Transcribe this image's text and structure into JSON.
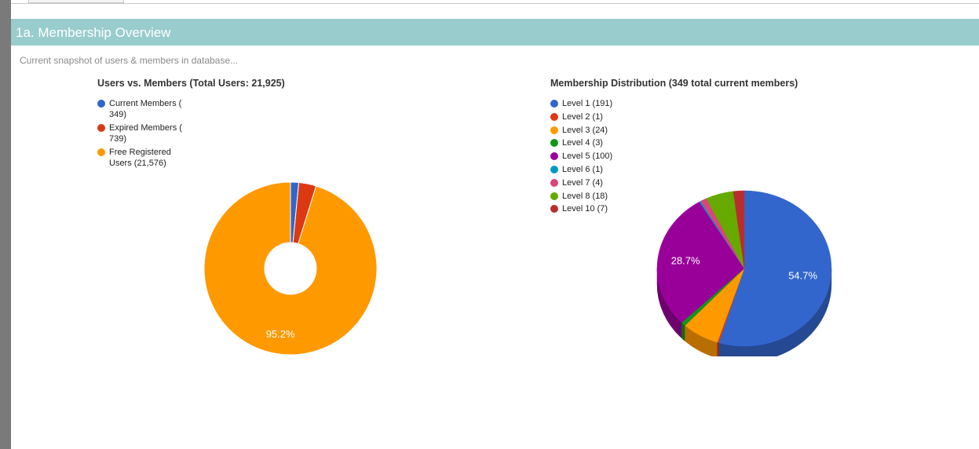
{
  "section": {
    "title": "1a. Membership Overview",
    "subtitle": "Current snapshot of users & members in database..."
  },
  "chart_data": [
    {
      "type": "pie",
      "variant": "donut",
      "title": "Users vs. Members (Total Users: 21,925)",
      "legend_position": "top-left",
      "series": [
        {
          "label": "Current Members ( 349)",
          "value": 349,
          "color": "#3366cc"
        },
        {
          "label": "Expired Members ( 739)",
          "value": 739,
          "color": "#dc3912"
        },
        {
          "label": "Free Registered Users (21,576)",
          "value": 21576,
          "color": "#ff9900"
        }
      ],
      "slice_labels": [
        "",
        "",
        "95.2%"
      ]
    },
    {
      "type": "pie",
      "variant": "3d",
      "title": "Membership Distribution (349 total current members)",
      "legend_position": "top-left",
      "series": [
        {
          "label": "Level 1 (191)",
          "value": 191,
          "color": "#3366cc"
        },
        {
          "label": "Level 2 (1)",
          "value": 1,
          "color": "#dc3912"
        },
        {
          "label": "Level 3 (24)",
          "value": 24,
          "color": "#ff9900"
        },
        {
          "label": "Level 4 (3)",
          "value": 3,
          "color": "#109618"
        },
        {
          "label": "Level 5 (100)",
          "value": 100,
          "color": "#990099"
        },
        {
          "label": "Level 6 (1)",
          "value": 1,
          "color": "#0099c6"
        },
        {
          "label": "Level 7 (4)",
          "value": 4,
          "color": "#dd4477"
        },
        {
          "label": "Level 8 (18)",
          "value": 18,
          "color": "#66aa00"
        },
        {
          "label": "Level 10 (7)",
          "value": 7,
          "color": "#b82e2e"
        }
      ],
      "slice_labels": [
        "54.7%",
        "",
        "",
        "",
        "28.7%",
        "",
        "",
        "",
        ""
      ]
    }
  ]
}
